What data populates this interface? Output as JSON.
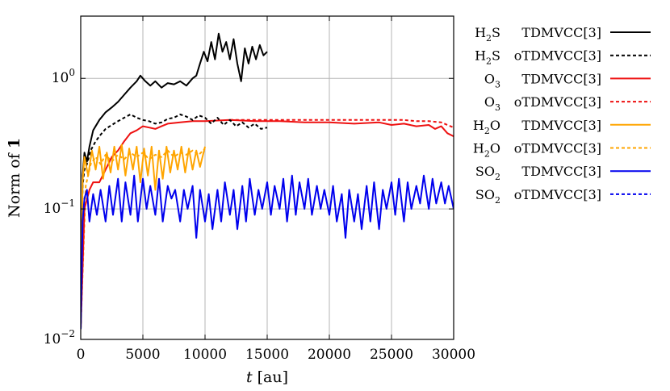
{
  "chart_data": {
    "type": "line",
    "title": "",
    "xlabel": {
      "var": "t",
      "unit": "[au]"
    },
    "ylabel": {
      "text": "Norm of",
      "bold": "1"
    },
    "xlim": [
      0,
      30000
    ],
    "ylim": [
      0.01,
      3
    ],
    "yscale": "log",
    "grid": true,
    "legend_position": "outside-right",
    "x_ticks": [
      0,
      5000,
      10000,
      15000,
      20000,
      25000,
      30000
    ],
    "x_tick_labels": [
      "0",
      "5000",
      "10000",
      "15000",
      "20000",
      "25000",
      "30000"
    ],
    "y_ticks": [
      {
        "value": 0.01,
        "base": "10",
        "exp": "−2"
      },
      {
        "value": 0.1,
        "base": "10",
        "exp": "−1"
      },
      {
        "value": 1,
        "base": "10",
        "exp": "0"
      }
    ],
    "series": [
      {
        "molecule": {
          "main": "H",
          "sub": "2",
          "rest": "S"
        },
        "method": "TDMVCC[3]",
        "color": "#000000",
        "dash": "solid",
        "x": [
          0,
          150,
          300,
          500,
          700,
          1000,
          1500,
          2000,
          2500,
          3000,
          3500,
          4000,
          4500,
          4800,
          5200,
          5600,
          6000,
          6500,
          7000,
          7500,
          8000,
          8500,
          9000,
          9300,
          9600,
          9900,
          10200,
          10500,
          10800,
          11100,
          11400,
          11700,
          12000,
          12300,
          12600,
          12900,
          13200,
          13500,
          13800,
          14100,
          14400,
          14700,
          15000
        ],
        "y": [
          0.012,
          0.18,
          0.27,
          0.23,
          0.3,
          0.4,
          0.48,
          0.55,
          0.6,
          0.66,
          0.75,
          0.85,
          0.95,
          1.05,
          0.95,
          0.88,
          0.95,
          0.85,
          0.92,
          0.9,
          0.95,
          0.88,
          1.0,
          1.05,
          1.3,
          1.6,
          1.35,
          1.9,
          1.4,
          2.2,
          1.6,
          1.9,
          1.4,
          2.0,
          1.3,
          0.95,
          1.7,
          1.3,
          1.75,
          1.4,
          1.8,
          1.5,
          1.6
        ]
      },
      {
        "molecule": {
          "main": "H",
          "sub": "2",
          "rest": "S"
        },
        "method": "oTDMVCC[3]",
        "color": "#000000",
        "dash": "dashed",
        "x": [
          0,
          150,
          300,
          500,
          800,
          1200,
          1600,
          2000,
          2500,
          3000,
          3500,
          4000,
          4500,
          5000,
          5500,
          6000,
          6500,
          7000,
          7500,
          8000,
          8500,
          9000,
          9500,
          10000,
          10500,
          11000,
          11500,
          12000,
          12500,
          13000,
          13500,
          14000,
          14500,
          15000
        ],
        "y": [
          0.012,
          0.15,
          0.2,
          0.22,
          0.28,
          0.33,
          0.37,
          0.41,
          0.44,
          0.47,
          0.5,
          0.53,
          0.5,
          0.48,
          0.47,
          0.45,
          0.46,
          0.49,
          0.5,
          0.53,
          0.51,
          0.48,
          0.52,
          0.5,
          0.45,
          0.5,
          0.44,
          0.48,
          0.43,
          0.46,
          0.42,
          0.45,
          0.41,
          0.42
        ]
      },
      {
        "molecule": {
          "main": "O",
          "sub": "3",
          "rest": ""
        },
        "method": "TDMVCC[3]",
        "color": "#ee1111",
        "dash": "solid",
        "x": [
          0,
          300,
          700,
          1000,
          1500,
          2000,
          2500,
          3000,
          3500,
          4000,
          4500,
          5000,
          5500,
          6000,
          6500,
          7000,
          8000,
          9000,
          10000,
          12000,
          14000,
          16000,
          18000,
          20000,
          22000,
          24000,
          25000,
          26000,
          27000,
          28000,
          28500,
          29000,
          29500,
          30000
        ],
        "y": [
          0.012,
          0.1,
          0.14,
          0.16,
          0.16,
          0.2,
          0.25,
          0.28,
          0.33,
          0.38,
          0.4,
          0.43,
          0.42,
          0.41,
          0.43,
          0.45,
          0.46,
          0.47,
          0.47,
          0.48,
          0.47,
          0.47,
          0.46,
          0.46,
          0.45,
          0.46,
          0.44,
          0.45,
          0.43,
          0.44,
          0.41,
          0.43,
          0.38,
          0.36
        ]
      },
      {
        "molecule": {
          "main": "O",
          "sub": "3",
          "rest": ""
        },
        "method": "oTDMVCC[3]",
        "color": "#ee1111",
        "dash": "dashed",
        "x": [
          12000,
          14000,
          16000,
          18000,
          20000,
          22000,
          24000,
          25000,
          26000,
          27000,
          28000,
          29000,
          29500,
          30000
        ],
        "y": [
          0.48,
          0.48,
          0.48,
          0.48,
          0.48,
          0.48,
          0.48,
          0.48,
          0.48,
          0.47,
          0.47,
          0.46,
          0.44,
          0.42
        ]
      },
      {
        "molecule": {
          "main": "H",
          "sub": "2",
          "rest": "O"
        },
        "method": "TDMVCC[3]",
        "color": "#ffa500",
        "dash": "solid",
        "x": [
          0,
          150,
          300,
          600,
          900,
          1200,
          1500,
          1800,
          2100,
          2400,
          2700,
          3000,
          3300,
          3600,
          3900,
          4200,
          4500,
          4800,
          5100,
          5400,
          5700,
          6000,
          6300,
          6600,
          6900,
          7200,
          7500,
          7800,
          8100,
          8400,
          8700,
          9000,
          9300,
          9600,
          10000
        ],
        "y": [
          0.012,
          0.16,
          0.25,
          0.18,
          0.28,
          0.2,
          0.3,
          0.17,
          0.27,
          0.19,
          0.3,
          0.2,
          0.31,
          0.18,
          0.29,
          0.2,
          0.3,
          0.16,
          0.29,
          0.18,
          0.3,
          0.14,
          0.28,
          0.17,
          0.3,
          0.19,
          0.28,
          0.2,
          0.3,
          0.19,
          0.29,
          0.2,
          0.28,
          0.21,
          0.3
        ]
      },
      {
        "molecule": {
          "main": "H",
          "sub": "2",
          "rest": "O"
        },
        "method": "oTDMVCC[3]",
        "color": "#ffa500",
        "dash": "dashed",
        "x": [
          0,
          400,
          800,
          1200,
          1600,
          2000,
          2500,
          3000,
          3500,
          4000,
          4500,
          5000,
          5500,
          6000,
          6500,
          7000,
          7500,
          8000,
          8500,
          9000,
          9500,
          10000
        ],
        "y": [
          0.012,
          0.15,
          0.22,
          0.25,
          0.22,
          0.26,
          0.23,
          0.26,
          0.24,
          0.27,
          0.25,
          0.27,
          0.24,
          0.26,
          0.25,
          0.28,
          0.25,
          0.27,
          0.26,
          0.28,
          0.26,
          0.29
        ]
      },
      {
        "molecule": {
          "main": "SO",
          "sub": "2",
          "rest": ""
        },
        "method": "TDMVCC[3]",
        "color": "#0000ee",
        "dash": "solid",
        "x": [
          0,
          150,
          300,
          500,
          700,
          1000,
          1300,
          1600,
          2000,
          2300,
          2600,
          3000,
          3300,
          3600,
          4000,
          4300,
          4600,
          5000,
          5300,
          5600,
          6000,
          6300,
          6600,
          7000,
          7300,
          7600,
          8000,
          8300,
          8600,
          9000,
          9300,
          9600,
          10000,
          10300,
          10600,
          11000,
          11300,
          11600,
          12000,
          12300,
          12600,
          13000,
          13300,
          13600,
          14000,
          14300,
          14600,
          15000,
          15300,
          15600,
          16000,
          16300,
          16600,
          17000,
          17300,
          17600,
          18000,
          18300,
          18600,
          19000,
          19300,
          19600,
          20000,
          20300,
          20600,
          21000,
          21300,
          21600,
          22000,
          22300,
          22600,
          23000,
          23300,
          23600,
          24000,
          24300,
          24600,
          25000,
          25300,
          25600,
          26000,
          26300,
          26600,
          27000,
          27300,
          27600,
          28000,
          28300,
          28600,
          29000,
          29300,
          29600,
          30000
        ],
        "y": [
          0.012,
          0.08,
          0.12,
          0.14,
          0.08,
          0.13,
          0.09,
          0.14,
          0.08,
          0.15,
          0.09,
          0.17,
          0.08,
          0.16,
          0.09,
          0.18,
          0.08,
          0.17,
          0.1,
          0.15,
          0.09,
          0.17,
          0.08,
          0.15,
          0.12,
          0.14,
          0.08,
          0.14,
          0.1,
          0.15,
          0.06,
          0.14,
          0.08,
          0.13,
          0.07,
          0.14,
          0.08,
          0.16,
          0.09,
          0.14,
          0.07,
          0.15,
          0.08,
          0.17,
          0.09,
          0.14,
          0.1,
          0.16,
          0.09,
          0.15,
          0.1,
          0.17,
          0.08,
          0.18,
          0.09,
          0.16,
          0.1,
          0.17,
          0.09,
          0.15,
          0.1,
          0.14,
          0.09,
          0.15,
          0.08,
          0.13,
          0.06,
          0.14,
          0.08,
          0.13,
          0.07,
          0.15,
          0.08,
          0.16,
          0.07,
          0.14,
          0.1,
          0.16,
          0.09,
          0.17,
          0.08,
          0.16,
          0.1,
          0.15,
          0.11,
          0.18,
          0.1,
          0.17,
          0.11,
          0.16,
          0.11,
          0.15,
          0.1
        ]
      },
      {
        "molecule": {
          "main": "SO",
          "sub": "2",
          "rest": ""
        },
        "method": "oTDMVCC[3]",
        "color": "#0000ee",
        "dash": "dashed",
        "x": [],
        "y": []
      }
    ]
  }
}
